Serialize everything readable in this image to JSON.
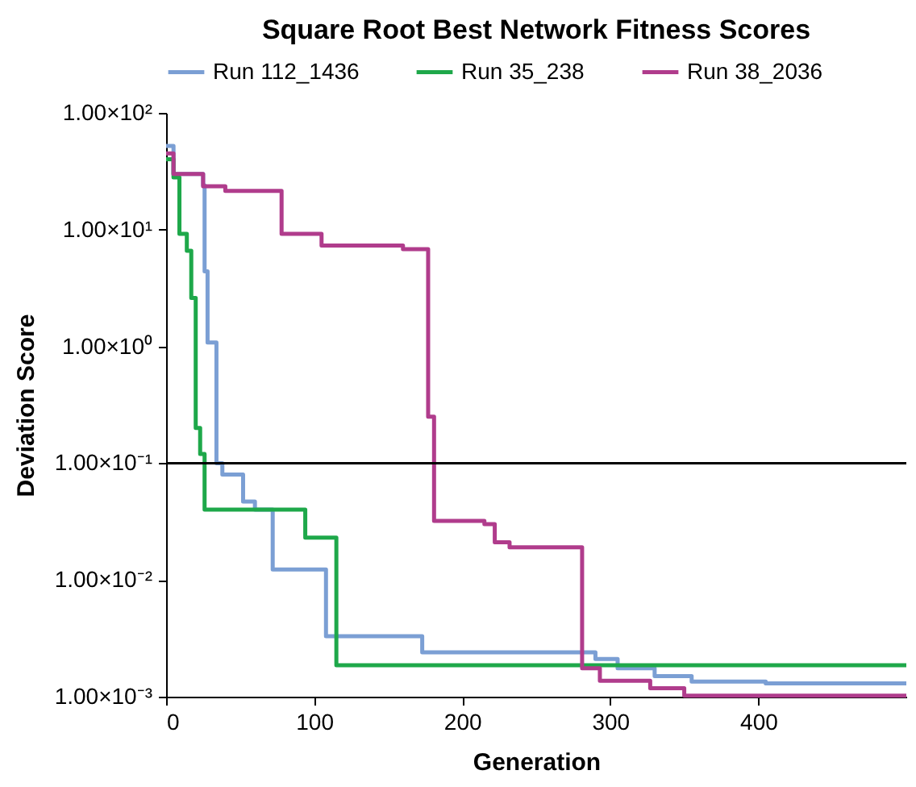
{
  "chart_data": {
    "type": "step",
    "title": "Square Root Best Network Fitness Scores",
    "xlabel": "Generation",
    "ylabel": "Deviation Score",
    "log": "y",
    "grid": false,
    "legend": "top",
    "marker": "none",
    "line_style": "solid",
    "xlim": [
      0,
      500
    ],
    "xticks": [
      0,
      100,
      200,
      300,
      400
    ],
    "ylim": [
      0.001,
      100
    ],
    "yticks": [
      {
        "value": 100,
        "label": "1.00×10²"
      },
      {
        "value": 10,
        "label": "1.00×10¹"
      },
      {
        "value": 1,
        "label": "1.00×10⁰"
      },
      {
        "value": 0.1,
        "label": "1.00×10⁻¹"
      },
      {
        "value": 0.01,
        "label": "1.00×10⁻²"
      },
      {
        "value": 0.001,
        "label": "1.00×10⁻³"
      }
    ],
    "ref_lines": [
      {
        "axis": "y",
        "value": 0.1,
        "color": "#000000"
      }
    ],
    "series": [
      {
        "name": "Run 112_1436",
        "color": "#7b9fd4",
        "x": [
          0,
          5,
          25,
          26,
          28,
          34,
          38,
          52,
          60,
          72,
          108,
          173,
          290,
          305,
          330,
          355,
          405,
          500
        ],
        "values": [
          52,
          30,
          24,
          4.4,
          1.08,
          0.1,
          0.08,
          0.047,
          0.04,
          0.0123,
          0.0033,
          0.0024,
          0.0021,
          0.00175,
          0.0015,
          0.00135,
          0.0013,
          0.0013
        ]
      },
      {
        "name": "Run 35_238",
        "color": "#1ea84a",
        "x": [
          0,
          5,
          9,
          14,
          17,
          20,
          23,
          26,
          94,
          115,
          500
        ],
        "values": [
          40,
          28,
          9.2,
          6.6,
          2.6,
          0.2,
          0.12,
          0.04,
          0.023,
          0.00186,
          0.00186
        ]
      },
      {
        "name": "Run 38_2036",
        "color": "#b03c8c",
        "x": [
          0,
          5,
          25,
          40,
          78,
          105,
          160,
          177,
          181,
          215,
          222,
          232,
          281,
          293,
          327,
          350,
          500
        ],
        "values": [
          45,
          30,
          23.5,
          21.5,
          9.2,
          7.3,
          6.8,
          0.25,
          0.032,
          0.03,
          0.021,
          0.019,
          0.00175,
          0.00137,
          0.00118,
          0.00102,
          0.00102
        ]
      }
    ]
  }
}
